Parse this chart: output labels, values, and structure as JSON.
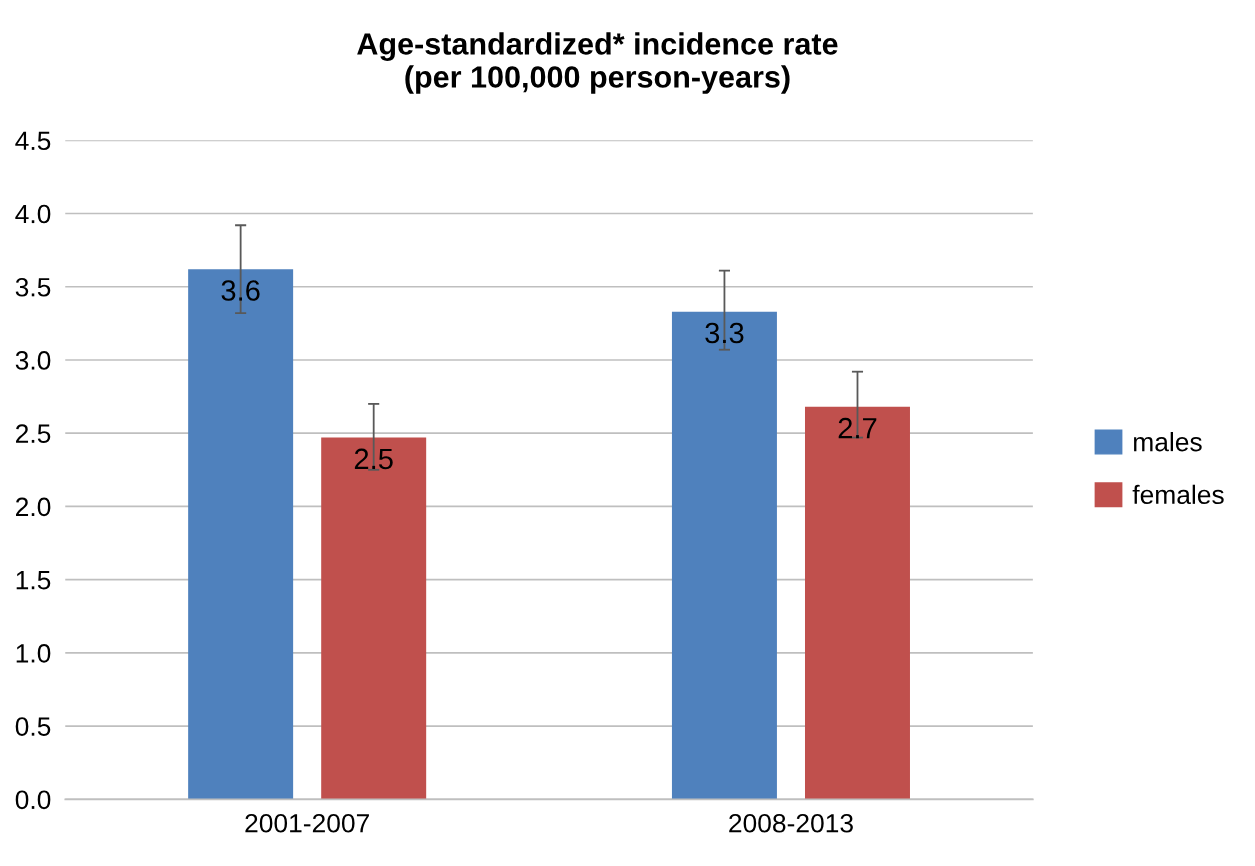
{
  "chart_data": {
    "type": "bar",
    "title": "Age-standardized* incidence rate\n(per 100,000 person-years)",
    "categories": [
      "2001-2007",
      "2008-2013"
    ],
    "series": [
      {
        "name": "males",
        "color": "#4f81bd",
        "values": [
          3.62,
          3.33
        ],
        "value_labels": [
          "3.6",
          "3.3"
        ],
        "errors": [
          [
            3.32,
            3.92
          ],
          [
            3.07,
            3.61
          ]
        ]
      },
      {
        "name": "females",
        "color": "#c0504d",
        "values": [
          2.47,
          2.68
        ],
        "value_labels": [
          "2.5",
          "2.7"
        ],
        "errors": [
          [
            2.25,
            2.7
          ],
          [
            2.47,
            2.92
          ]
        ]
      }
    ],
    "ylim": [
      0,
      4.5
    ],
    "yticks": [
      {
        "value": 0,
        "label": "0.0"
      },
      {
        "value": 0.5,
        "label": "0.5"
      },
      {
        "value": 1,
        "label": "1.0"
      },
      {
        "value": 1.5,
        "label": "1.5"
      },
      {
        "value": 2,
        "label": "2.0"
      },
      {
        "value": 2.5,
        "label": "2.5"
      },
      {
        "value": 3,
        "label": "3.0"
      },
      {
        "value": 3.5,
        "label": "3.5"
      },
      {
        "value": 4,
        "label": "4.0"
      },
      {
        "value": 4.5,
        "label": "4.5"
      }
    ],
    "grid": "y",
    "legend": "right"
  }
}
